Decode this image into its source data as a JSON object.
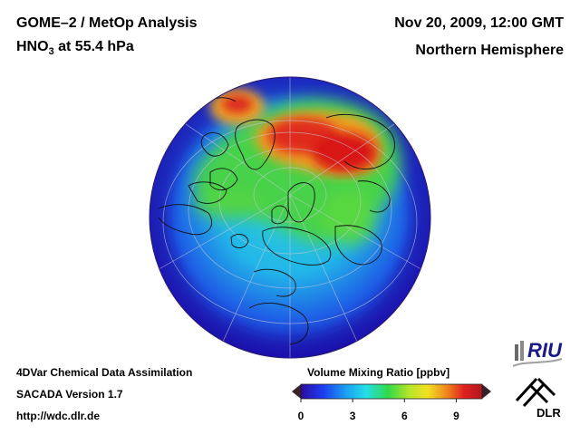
{
  "header": {
    "title_line1": "GOME–2 / MetOp Analysis",
    "species_prefix": "HNO",
    "species_subscript": "3",
    "species_suffix": " at 55.4 hPa",
    "datetime": "Nov 20, 2009, 12:00 GMT",
    "region": "Northern Hemisphere"
  },
  "footer": {
    "system": "4DVar Chemical Data Assimilation",
    "version": "SACADA Version 1.7",
    "url": "http://wdc.dlr.de"
  },
  "colorbar": {
    "title": "Volume Mixing Ratio [ppbv]",
    "ticks": [
      "0",
      "3",
      "6",
      "9"
    ],
    "tick_values": [
      0,
      3,
      6,
      9
    ],
    "min": 0,
    "max": 10.5
  },
  "logos": {
    "riu": "RIU",
    "dlr": "DLR"
  },
  "colors": {
    "map_low": "#1a14b4",
    "map_mid": "#24c8e0",
    "map_green": "#42d246",
    "map_high": "#d21414"
  }
}
